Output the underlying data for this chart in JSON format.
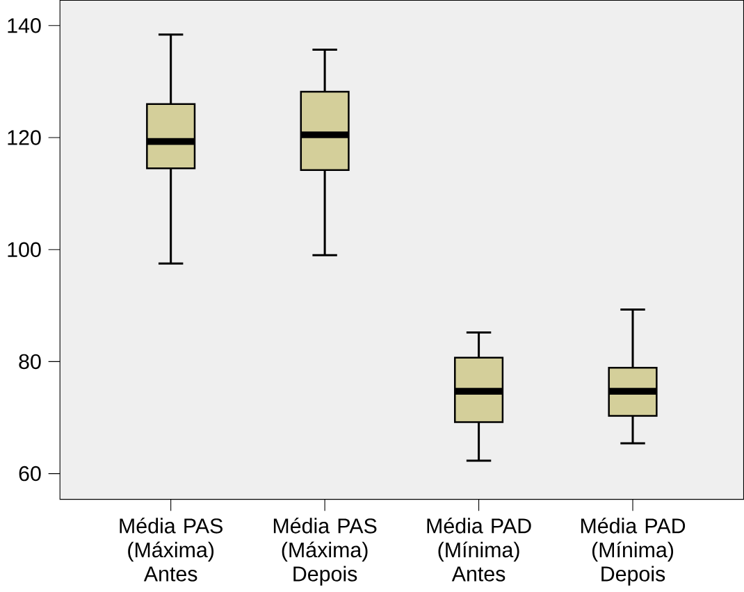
{
  "chart_data": {
    "type": "box",
    "categories": [
      "Média PAS (Máxima) Antes",
      "Média PAS (Máxima) Depois",
      "Média PAD (Mínima) Antes",
      "Média PAD (Mínima) Depois"
    ],
    "boxes": [
      {
        "low": 97.5,
        "q1": 114.5,
        "median": 119.3,
        "q3": 126.0,
        "high": 138.4
      },
      {
        "low": 99.0,
        "q1": 114.2,
        "median": 120.5,
        "q3": 128.2,
        "high": 135.7
      },
      {
        "low": 62.3,
        "q1": 69.2,
        "median": 74.7,
        "q3": 80.7,
        "high": 85.2
      },
      {
        "low": 65.4,
        "q1": 70.3,
        "median": 74.7,
        "q3": 78.9,
        "high": 89.3
      }
    ],
    "color": "#d4cf9a",
    "ylim": [
      55.4,
      144.5
    ],
    "yticks": [
      60,
      80,
      100,
      120,
      140
    ]
  }
}
